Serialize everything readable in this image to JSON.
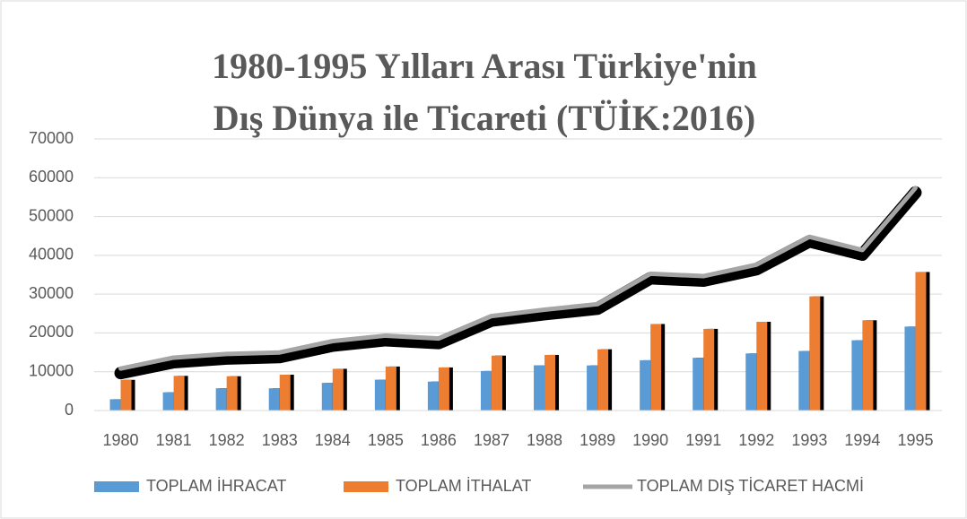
{
  "chart_data": {
    "type": "bar_line",
    "title_lines": [
      "1980-1995 Yılları Arası Türkiye'nin",
      "Dış Dünya ile Ticareti (TÜİK:2016)"
    ],
    "categories": [
      "1980",
      "1981",
      "1982",
      "1983",
      "1984",
      "1985",
      "1986",
      "1987",
      "1988",
      "1989",
      "1990",
      "1991",
      "1992",
      "1993",
      "1994",
      "1995"
    ],
    "series": [
      {
        "name": "TOPLAM İHRACAT",
        "color": "#5b9bd5",
        "kind": "bar",
        "values": [
          2910,
          4703,
          5746,
          5728,
          7134,
          7958,
          7457,
          10190,
          11662,
          11625,
          12959,
          13593,
          14715,
          15345,
          18106,
          21637
        ]
      },
      {
        "name": "TOPLAM İTHALAT",
        "color": "#ed7d31",
        "kind": "bar",
        "values": [
          7909,
          8933,
          8843,
          9235,
          10757,
          11344,
          11105,
          14158,
          14335,
          15792,
          22302,
          21047,
          22871,
          29428,
          23270,
          35709
        ]
      },
      {
        "name": "TOPLAM DIŞ TİCARET HACMİ",
        "color": "#a5a5a5",
        "kind": "line",
        "values": [
          10819,
          13636,
          14589,
          14963,
          17891,
          19302,
          18562,
          24348,
          25997,
          27417,
          35261,
          34640,
          37586,
          44773,
          41376,
          57346
        ]
      }
    ],
    "ylim": [
      0,
      70000
    ],
    "yticks": [
      0,
      10000,
      20000,
      30000,
      40000,
      50000,
      60000,
      70000
    ],
    "grid": true
  }
}
